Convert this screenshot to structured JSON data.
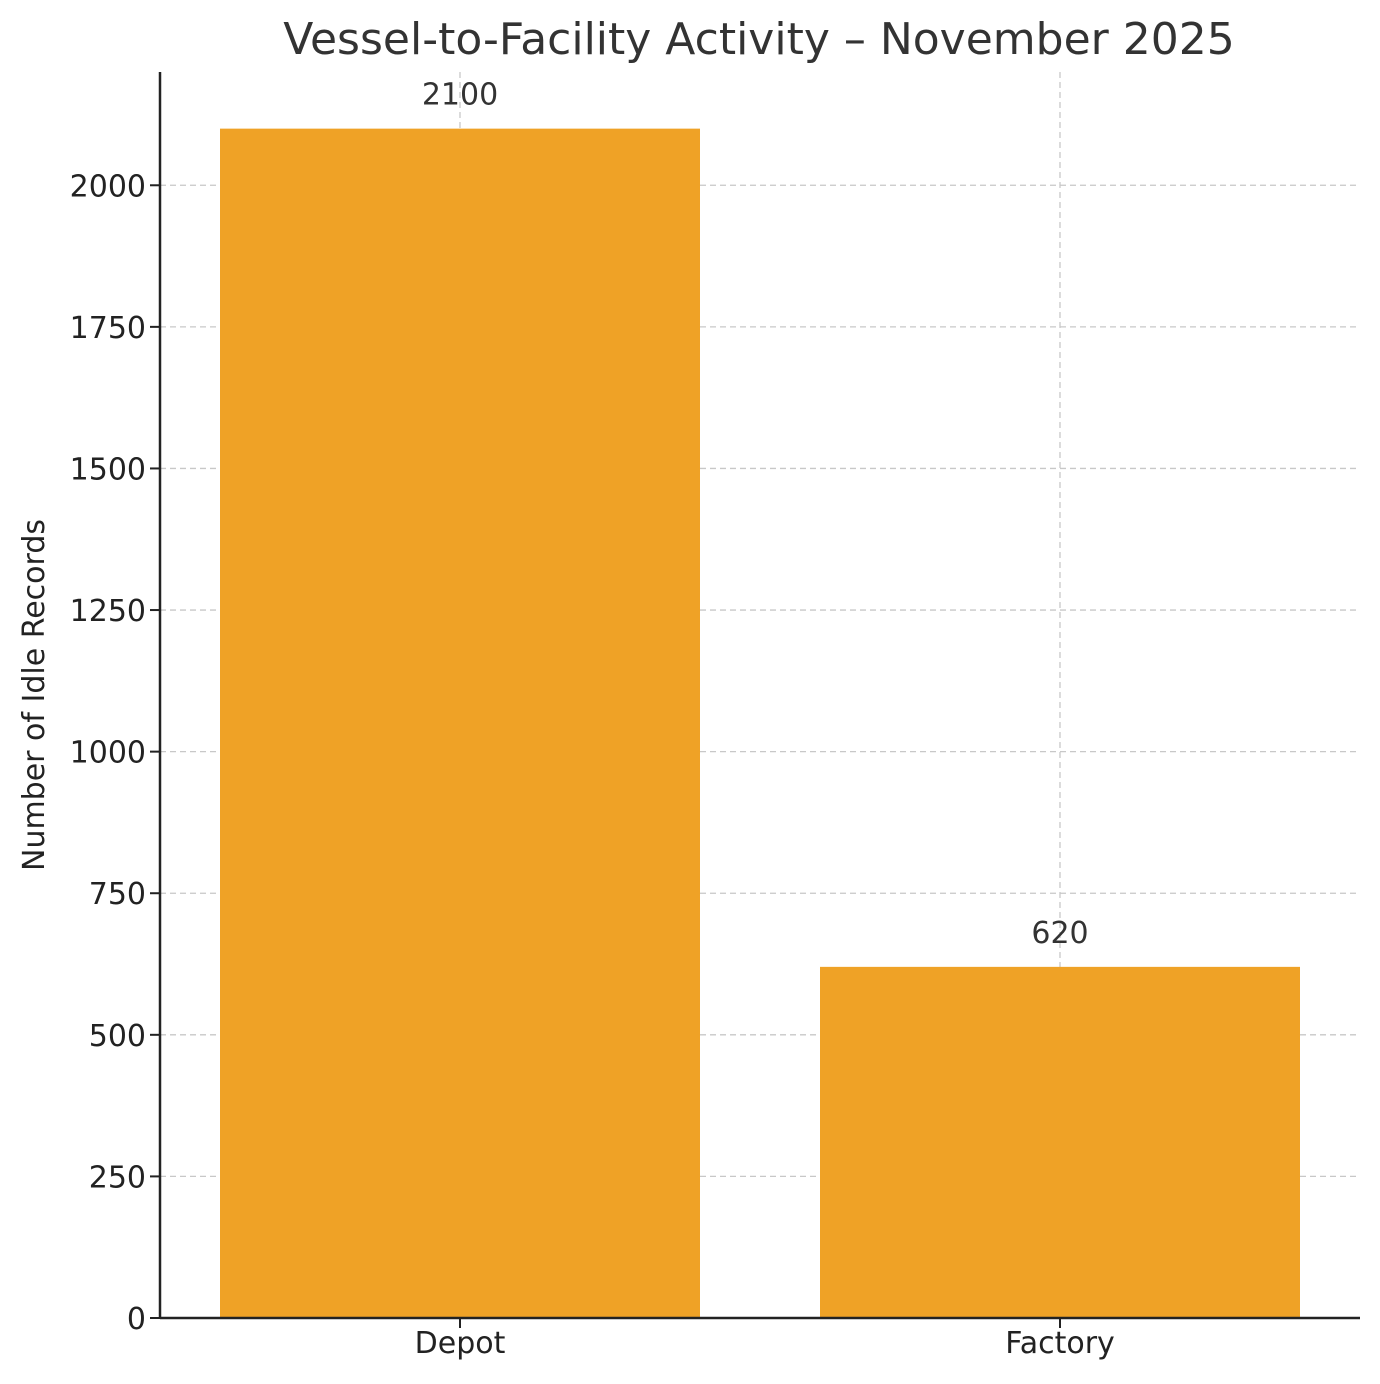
{
  "chart_data": {
    "type": "bar",
    "title": "Vessel-to-Facility Activity – November 2025",
    "xlabel": "",
    "ylabel": "Number of Idle Records",
    "categories": [
      "Depot",
      "Factory"
    ],
    "values": [
      2100,
      620
    ],
    "data_labels": [
      "2100",
      "620"
    ],
    "ylim": [
      0,
      2200
    ],
    "yticks": [
      0,
      250,
      500,
      750,
      1000,
      1250,
      1500,
      1750,
      2000
    ],
    "grid": true,
    "bar_color": "#EFA226"
  }
}
